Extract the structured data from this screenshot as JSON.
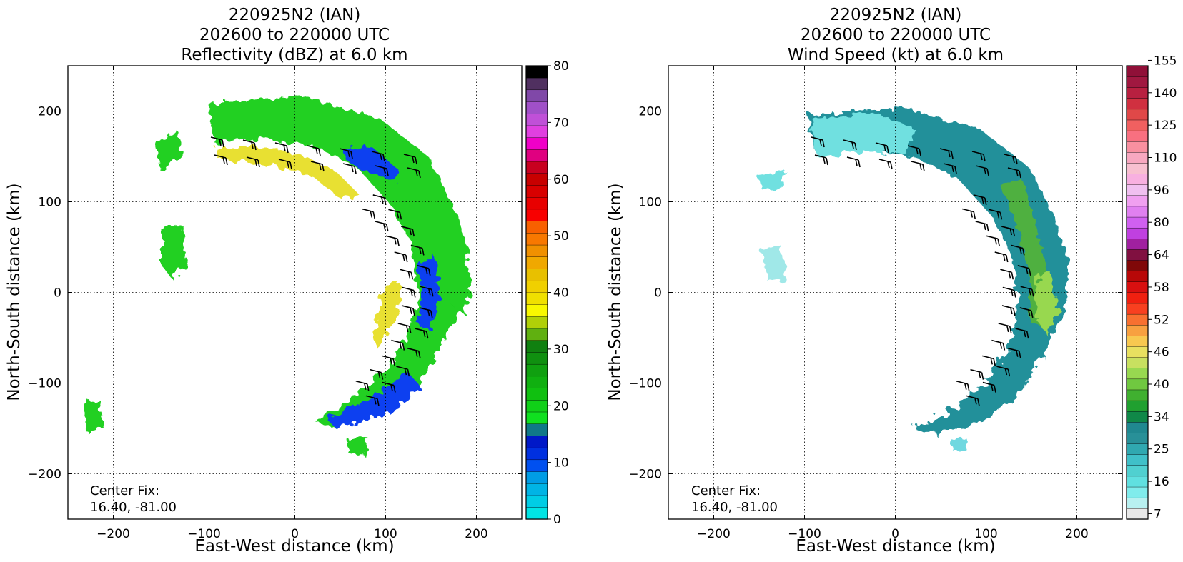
{
  "chart_data": [
    {
      "type": "heatmap",
      "title_lines": [
        "220925N2 (IAN)",
        "202600 to 220000 UTC",
        "Reflectivity (dBZ) at 6.0 km"
      ],
      "xlabel": "East-West distance (km)",
      "ylabel": "North-South distance (km)",
      "xlim": [
        -250,
        250
      ],
      "ylim": [
        -250,
        250
      ],
      "xticks": [
        -200,
        -100,
        0,
        100,
        200
      ],
      "yticks": [
        -200,
        -100,
        0,
        100,
        200
      ],
      "xtick_labels": [
        "−200",
        "−100",
        "0",
        "100",
        "200"
      ],
      "ytick_labels": [
        "−200",
        "−100",
        "0",
        "100",
        "200"
      ],
      "grid": "dotted",
      "annotation": [
        "Center Fix:",
        "16.40, -81.00"
      ],
      "colorbar": {
        "min": 0,
        "max": 80,
        "ticks": [
          0,
          10,
          20,
          30,
          40,
          50,
          60,
          70,
          80
        ],
        "tick_labels": [
          "0",
          "10",
          "20",
          "30",
          "40",
          "50",
          "60",
          "70",
          "80"
        ],
        "colors": [
          "#00e5e5",
          "#00cde5",
          "#00b4e5",
          "#009ce5",
          "#0050f0",
          "#0030e0",
          "#0018c8",
          "#107888",
          "#10e020",
          "#10d018",
          "#10c010",
          "#10b010",
          "#10a010",
          "#109010",
          "#108010",
          "#60b010",
          "#b0d008",
          "#f8f800",
          "#f0e000",
          "#f0d000",
          "#e8c000",
          "#f0a800",
          "#f09000",
          "#f87800",
          "#f86000",
          "#f80000",
          "#e80000",
          "#d80000",
          "#c80000",
          "#c80020",
          "#e00080",
          "#f000c8",
          "#e040e0",
          "#c050d8",
          "#a050c8",
          "#8048a8",
          "#503060",
          "#000000"
        ]
      },
      "wind_barbs": "present",
      "echo_region": "curved rainband arc, north to east to south of center"
    },
    {
      "type": "heatmap",
      "title_lines": [
        "220925N2 (IAN)",
        "202600 to 220000 UTC",
        "Wind Speed (kt) at 6.0 km"
      ],
      "xlabel": "East-West distance (km)",
      "ylabel": "North-South distance (km)",
      "xlim": [
        -250,
        250
      ],
      "ylim": [
        -250,
        250
      ],
      "xticks": [
        -200,
        -100,
        0,
        100,
        200
      ],
      "yticks": [
        -200,
        -100,
        0,
        100,
        200
      ],
      "xtick_labels": [
        "−200",
        "−100",
        "0",
        "100",
        "200"
      ],
      "ytick_labels": [
        "−200",
        "−100",
        "0",
        "100",
        "200"
      ],
      "grid": "dotted",
      "annotation": [
        "Center Fix:",
        "16.40, -81.00"
      ],
      "colorbar": {
        "levels": [
          "7",
          "",
          "",
          "16",
          "",
          "",
          "25",
          "",
          "",
          "34",
          "",
          "",
          "40",
          "",
          "",
          "46",
          "",
          "",
          "52",
          "",
          "",
          "58",
          "",
          "",
          "64",
          "",
          "",
          "80",
          "",
          "",
          "96",
          "",
          "",
          "110",
          "",
          "",
          "125",
          "",
          "",
          "140",
          "",
          "",
          "155",
          ""
        ],
        "tick_labels": [
          "7",
          "16",
          "25",
          "34",
          "40",
          "46",
          "52",
          "58",
          "64",
          "80",
          "96",
          "110",
          "125",
          "140",
          "155"
        ],
        "colors": [
          "#e8e8e8",
          "#b8f0f0",
          "#80ecec",
          "#60e0e0",
          "#50d0d0",
          "#40c0c8",
          "#30a8b0",
          "#289098",
          "#208890",
          "#108848",
          "#20a030",
          "#40b030",
          "#70c840",
          "#98d850",
          "#c8e060",
          "#e8e060",
          "#f8c850",
          "#f8a040",
          "#f87030",
          "#f84020",
          "#f02010",
          "#d81010",
          "#b80808",
          "#800808",
          "#801040",
          "#a020a0",
          "#c040e0",
          "#d060f0",
          "#e080f0",
          "#f0a0f0",
          "#f0c0f0",
          "#f8b0e0",
          "#f8c0d0",
          "#f8a8c0",
          "#f890a0",
          "#f87080",
          "#f06060",
          "#e04848",
          "#d03040",
          "#b82040",
          "#a01840",
          "#901038"
        ]
      },
      "wind_barbs": "present",
      "echo_region": "curved rainband arc, north to east to south of center"
    }
  ]
}
